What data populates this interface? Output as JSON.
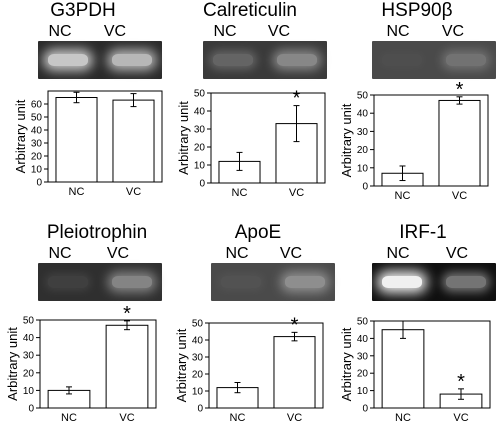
{
  "chart_data": [
    {
      "type": "bar",
      "title": "G3PDH",
      "lane_labels": [
        "NC",
        "VC"
      ],
      "categories": [
        "NC",
        "VC"
      ],
      "values": [
        65,
        63
      ],
      "errors": [
        4,
        5
      ],
      "ylabel": "Arbitrary unit",
      "ylim": [
        0,
        70
      ],
      "yticks": [
        0,
        10,
        20,
        30,
        40,
        50,
        60
      ],
      "significant": [
        false,
        false
      ],
      "gel": {
        "background": "#2a2a2a",
        "bands": [
          {
            "color": "#d8d8d8",
            "intensity": 0.9
          },
          {
            "color": "#d0d0d0",
            "intensity": 0.85
          }
        ]
      }
    },
    {
      "type": "bar",
      "title": "Calreticulin",
      "lane_labels": [
        "NC",
        "VC"
      ],
      "categories": [
        "NC",
        "VC"
      ],
      "values": [
        12,
        33
      ],
      "errors": [
        5,
        10
      ],
      "ylabel": "Arbitrary unit",
      "ylim": [
        0,
        50
      ],
      "yticks": [
        0,
        10,
        20,
        30,
        40,
        50
      ],
      "significant": [
        false,
        true
      ],
      "gel": {
        "background": "#3a3a3a",
        "bands": [
          {
            "color": "#8f8f8f",
            "intensity": 0.5
          },
          {
            "color": "#a8a8a8",
            "intensity": 0.7
          }
        ]
      }
    },
    {
      "type": "bar",
      "title": "HSP90β",
      "lane_labels": [
        "NC",
        "VC"
      ],
      "categories": [
        "NC",
        "VC"
      ],
      "values": [
        7,
        47
      ],
      "errors": [
        4,
        2
      ],
      "ylabel": "Arbitrary unit",
      "ylim": [
        0,
        50
      ],
      "yticks": [
        0,
        10,
        20,
        30,
        40,
        50
      ],
      "significant": [
        false,
        true
      ],
      "gel": {
        "background": "#4a4a4a",
        "bands": [
          {
            "color": "#5a5a5a",
            "intensity": 0.1
          },
          {
            "color": "#8e8e8e",
            "intensity": 0.6
          }
        ]
      }
    },
    {
      "type": "bar",
      "title": "Pleiotrophin",
      "lane_labels": [
        "NC",
        "VC"
      ],
      "categories": [
        "NC",
        "VC"
      ],
      "values": [
        10,
        47
      ],
      "errors": [
        2,
        2.5
      ],
      "ylabel": "Arbitrary unit",
      "ylim": [
        0,
        50
      ],
      "yticks": [
        0,
        10,
        20,
        30,
        40,
        50
      ],
      "significant": [
        false,
        true
      ],
      "gel": {
        "background": "#2f2f2f",
        "bands": [
          {
            "color": "#5f5f5f",
            "intensity": 0.35
          },
          {
            "color": "#9a9a9a",
            "intensity": 0.8
          }
        ]
      }
    },
    {
      "type": "bar",
      "title": "ApoE",
      "lane_labels": [
        "NC",
        "VC"
      ],
      "categories": [
        "NC",
        "VC"
      ],
      "values": [
        12,
        42
      ],
      "errors": [
        3,
        2.5
      ],
      "ylabel": "Arbitrary unit",
      "ylim": [
        0,
        50
      ],
      "yticks": [
        0,
        10,
        20,
        30,
        40,
        50
      ],
      "significant": [
        false,
        true
      ],
      "gel": {
        "background": "#4a4a4a",
        "bands": [
          {
            "color": "#6a6a6a",
            "intensity": 0.25
          },
          {
            "color": "#a0a0a0",
            "intensity": 0.8
          }
        ]
      }
    },
    {
      "type": "bar",
      "title": "IRF-1",
      "lane_labels": [
        "NC",
        "VC"
      ],
      "categories": [
        "NC",
        "VC"
      ],
      "values": [
        45,
        8
      ],
      "errors": [
        5,
        3
      ],
      "ylabel": "Arbitrary unit",
      "ylim": [
        0,
        50
      ],
      "yticks": [
        0,
        10,
        20,
        30,
        40,
        50
      ],
      "significant": [
        false,
        true
      ],
      "gel": {
        "background": "#0f0f0f",
        "bands": [
          {
            "color": "#f0f0f0",
            "intensity": 1.0
          },
          {
            "color": "#b8b8b8",
            "intensity": 0.6
          }
        ]
      }
    }
  ]
}
